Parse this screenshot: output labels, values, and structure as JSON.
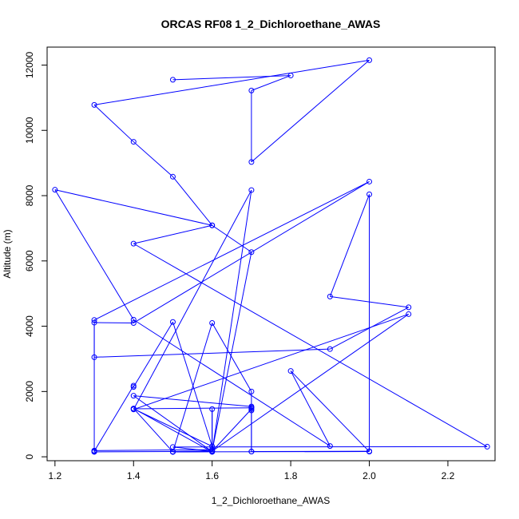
{
  "colors": {
    "series": "#0000ff",
    "axis": "#000000",
    "background": "#ffffff"
  },
  "chart_data": {
    "type": "line",
    "title": "ORCAS RF08 1_2_Dichloroethane_AWAS",
    "xlabel": "1_2_Dichloroethane_AWAS",
    "ylabel": "Altitude (m)",
    "xlim": [
      1.18,
      2.32
    ],
    "ylim": [
      -120,
      12550
    ],
    "xticks": [
      1.2,
      1.4,
      1.6,
      1.8,
      2.0,
      2.2
    ],
    "yticks": [
      0,
      2000,
      4000,
      6000,
      8000,
      10000,
      12000
    ],
    "xtick_labels": [
      "1.2",
      "1.4",
      "1.6",
      "1.8",
      "2.0",
      "2.2"
    ],
    "ytick_labels": [
      "0",
      "2000",
      "4000",
      "6000",
      "8000",
      "10000",
      "12000"
    ],
    "grid": false,
    "markers": "open-circle",
    "series": [
      {
        "x": [
          1.5,
          1.8,
          1.7,
          1.7,
          2.0,
          1.3,
          1.4,
          1.5,
          1.6,
          1.4,
          2.3,
          1.5,
          1.6,
          1.6,
          1.5,
          1.6,
          1.7,
          1.7,
          2.0,
          2.0,
          1.9,
          2.1,
          1.9,
          1.3,
          1.3,
          1.4,
          2.0,
          1.3,
          1.3,
          1.4,
          1.4,
          1.5,
          1.6,
          1.4,
          1.7,
          1.7,
          1.4,
          1.6,
          1.6,
          1.6,
          1.3,
          1.3,
          1.5,
          1.6,
          1.7,
          1.6,
          1.2,
          1.4,
          1.9,
          1.8,
          2.0,
          1.7,
          1.7,
          1.7,
          1.7,
          1.6,
          2.1,
          1.4,
          1.7,
          1.6,
          1.4,
          1.5,
          2.0
        ],
        "y": [
          11550,
          11680,
          11220,
          9030,
          12150,
          10780,
          9650,
          8580,
          7090,
          6530,
          310,
          300,
          170,
          160,
          150,
          4100,
          2000,
          160,
          170,
          8040,
          4910,
          4580,
          3300,
          3050,
          4110,
          4100,
          8430,
          4190,
          170,
          2180,
          2140,
          4130,
          320,
          1470,
          1500,
          1540,
          1870,
          160,
          1460,
          220,
          190,
          150,
          160,
          180,
          6270,
          7090,
          8180,
          4200,
          330,
          2630,
          160,
          160,
          1510,
          1420,
          1460,
          170,
          4370,
          1450,
          8170,
          150,
          1480,
          150,
          160
        ]
      }
    ]
  }
}
